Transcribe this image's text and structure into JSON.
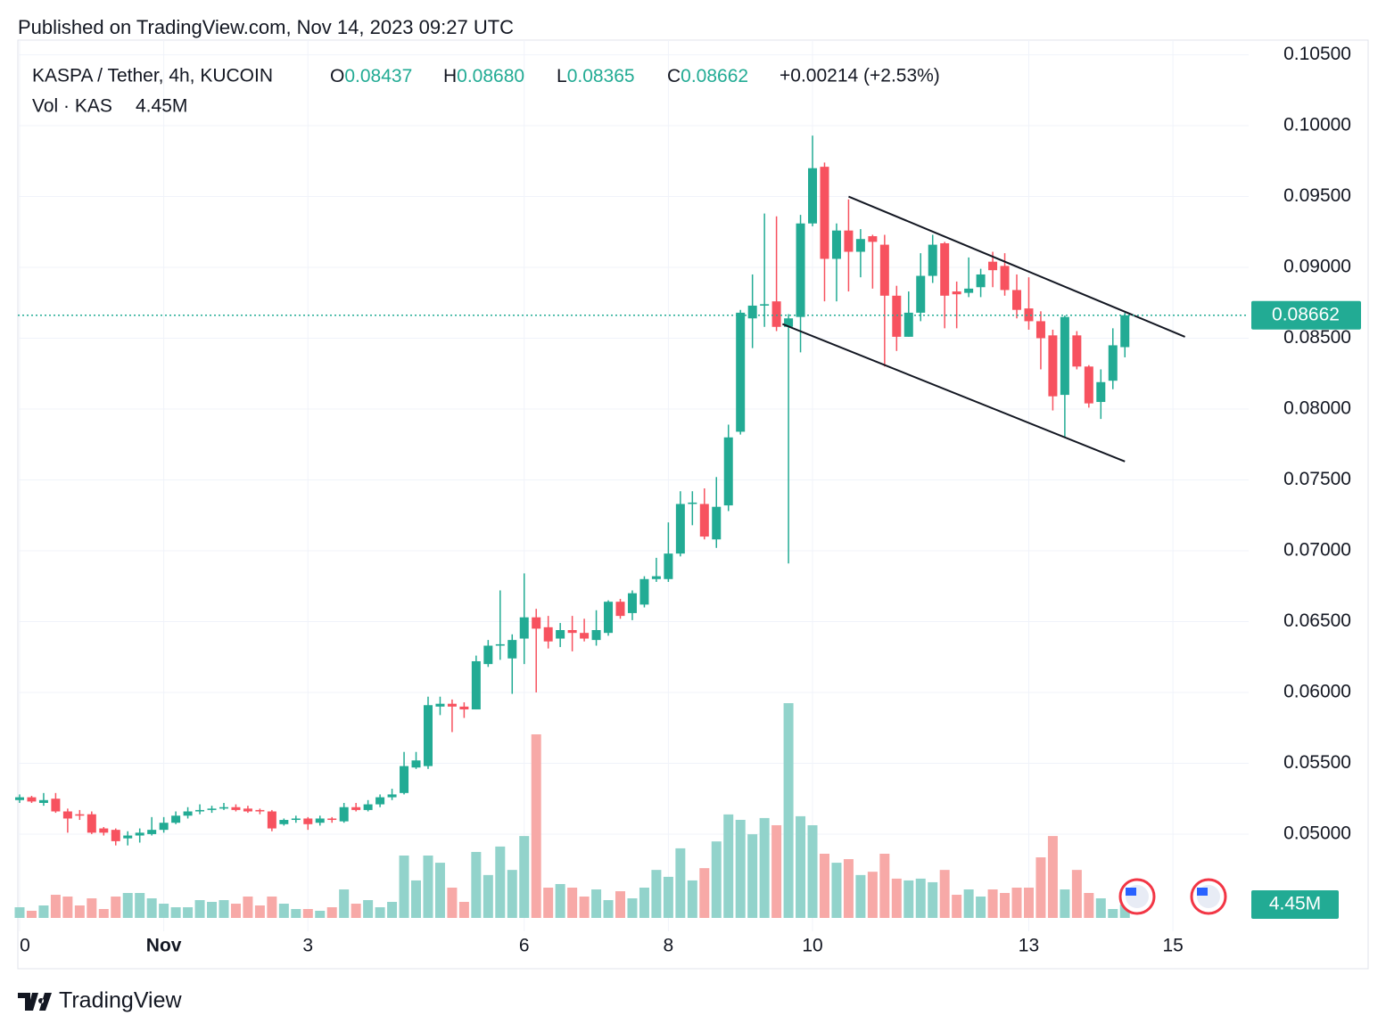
{
  "header": {
    "published": "Published on TradingView.com, Nov 14, 2023 09:27 UTC",
    "brand": "TradingView"
  },
  "chart_data": {
    "type": "candlestick",
    "symbol": "KASPA / Tether, 4h, KUCOIN",
    "ohlc_legend": [
      {
        "key": "O",
        "value": "0.08437"
      },
      {
        "key": "H",
        "value": "0.08680"
      },
      {
        "key": "L",
        "value": "0.08365"
      },
      {
        "key": "C",
        "value": "0.08662"
      }
    ],
    "change": "+0.00214 (+2.53%)",
    "volume_title": "Vol · KAS",
    "volume_legend": "4.45M",
    "up_color": "#22ab94",
    "down_color": "#f7525f",
    "volume_up_color": "#92d3cb",
    "volume_down_color": "#f7a9a7",
    "categories": [
      "0",
      null,
      null,
      null,
      null,
      null,
      null,
      null,
      null,
      null,
      null,
      null,
      "Nov",
      null,
      null,
      null,
      null,
      null,
      null,
      null,
      null,
      null,
      null,
      null,
      "3",
      null,
      null,
      null,
      null,
      null,
      null,
      null,
      null,
      null,
      null,
      null,
      null,
      null,
      null,
      null,
      null,
      null,
      "6",
      null,
      null,
      null,
      null,
      null,
      null,
      null,
      null,
      null,
      null,
      null,
      "8",
      null,
      null,
      null,
      null,
      null,
      null,
      null,
      null,
      null,
      null,
      null,
      "10",
      null,
      null,
      null,
      null,
      null,
      null,
      null,
      null,
      null,
      null,
      null,
      null,
      null,
      null,
      null,
      null,
      null,
      "13",
      null,
      null,
      null,
      null,
      null,
      null,
      null,
      null,
      null,
      null,
      null,
      "15"
    ],
    "bold_categories": [
      "Nov"
    ],
    "open": [
      0.0524,
      0.0526,
      0.0522,
      0.0525,
      0.0516,
      0.0514,
      0.0514,
      0.0504,
      0.0503,
      0.0497,
      0.0499,
      0.05,
      0.0503,
      0.0508,
      0.0513,
      0.0516,
      0.0517,
      0.0518,
      0.0519,
      0.0518,
      0.0517,
      0.0516,
      0.0507,
      0.051,
      0.0511,
      0.0508,
      0.0511,
      0.0509,
      0.0519,
      0.0517,
      0.0521,
      0.0526,
      0.0529,
      0.0547,
      0.0548,
      0.059,
      0.0592,
      0.059,
      0.0588,
      0.062,
      0.0633,
      0.0624,
      0.0638,
      0.0653,
      0.0646,
      0.0638,
      0.0644,
      0.0642,
      0.0637,
      0.0642,
      0.0664,
      0.0656,
      0.0662,
      0.068,
      0.068,
      0.0698,
      0.0733,
      0.0733,
      0.0708,
      0.0732,
      0.0784,
      0.0864,
      0.0873,
      0.0876,
      0.0858,
      0.0865,
      0.0931,
      0.0971,
      0.0906,
      0.0926,
      0.0911,
      0.0922,
      0.0916,
      0.088,
      0.0851,
      0.0868,
      0.0894,
      0.0917,
      0.0883,
      0.0882,
      0.0886,
      0.0904,
      0.0901,
      0.0884,
      0.0871,
      0.0862,
      0.0852,
      0.081,
      0.0852,
      0.083,
      0.0805,
      0.082,
      0.08437,
      null,
      null,
      null,
      null
    ],
    "high": [
      0.0528,
      0.0527,
      0.0529,
      0.0529,
      0.0518,
      0.0517,
      0.0516,
      0.0505,
      0.0504,
      0.0502,
      0.0504,
      0.0512,
      0.0512,
      0.0516,
      0.0519,
      0.0521,
      0.052,
      0.0522,
      0.0521,
      0.052,
      0.0518,
      0.0517,
      0.0511,
      0.0513,
      0.0512,
      0.0513,
      0.0512,
      0.0522,
      0.0522,
      0.0524,
      0.0528,
      0.0532,
      0.0558,
      0.0558,
      0.0597,
      0.0597,
      0.0595,
      0.0593,
      0.0626,
      0.0637,
      0.0672,
      0.0641,
      0.0684,
      0.0659,
      0.0654,
      0.0649,
      0.0654,
      0.0652,
      0.0658,
      0.0665,
      0.0666,
      0.0672,
      0.0682,
      0.0695,
      0.072,
      0.0742,
      0.0742,
      0.0744,
      0.0752,
      0.0789,
      0.087,
      0.0895,
      0.0938,
      0.0936,
      0.0867,
      0.0937,
      0.0993,
      0.0974,
      0.0931,
      0.0948,
      0.0927,
      0.0923,
      0.0923,
      0.0887,
      0.0883,
      0.091,
      0.0923,
      0.0918,
      0.089,
      0.0907,
      0.0899,
      0.0911,
      0.091,
      0.0895,
      0.0893,
      0.0869,
      0.0856,
      0.0866,
      0.0855,
      0.0831,
      0.0828,
      0.0857,
      0.0868,
      null,
      null,
      null,
      null
    ],
    "low": [
      0.0522,
      0.0522,
      0.052,
      0.0515,
      0.0501,
      0.051,
      0.05,
      0.0499,
      0.0492,
      0.0492,
      0.0494,
      0.0499,
      0.0501,
      0.0507,
      0.0511,
      0.0514,
      0.0515,
      0.0517,
      0.0516,
      0.0515,
      0.0514,
      0.0502,
      0.0506,
      0.0508,
      0.0503,
      0.0506,
      0.0508,
      0.0508,
      0.0516,
      0.0516,
      0.0519,
      0.0524,
      0.0528,
      0.0546,
      0.0546,
      0.0584,
      0.0572,
      0.0582,
      0.0588,
      0.0618,
      0.0623,
      0.0599,
      0.062,
      0.06,
      0.0631,
      0.0632,
      0.0629,
      0.0636,
      0.0633,
      0.064,
      0.0652,
      0.0651,
      0.066,
      0.0678,
      0.0678,
      0.0696,
      0.0718,
      0.0708,
      0.0702,
      0.0728,
      0.0782,
      0.0843,
      0.0858,
      0.0855,
      0.0691,
      0.084,
      0.0929,
      0.0876,
      0.0876,
      0.0883,
      0.0893,
      0.0885,
      0.083,
      0.0841,
      0.0851,
      0.0862,
      0.0889,
      0.0857,
      0.0857,
      0.0879,
      0.0879,
      0.0886,
      0.088,
      0.0864,
      0.0856,
      0.0828,
      0.0799,
      0.078,
      0.0828,
      0.0801,
      0.0793,
      0.0814,
      0.08365,
      null,
      null,
      null,
      null
    ],
    "close": [
      0.0526,
      0.0523,
      0.0524,
      0.0516,
      0.0511,
      0.0513,
      0.0501,
      0.0501,
      0.0495,
      0.0499,
      0.0501,
      0.0503,
      0.0508,
      0.0513,
      0.0516,
      0.0517,
      0.0518,
      0.0519,
      0.0517,
      0.0516,
      0.0516,
      0.0504,
      0.051,
      0.0511,
      0.0507,
      0.0511,
      0.051,
      0.0519,
      0.0517,
      0.0521,
      0.0526,
      0.0528,
      0.0548,
      0.0552,
      0.0591,
      0.0592,
      0.059,
      0.0588,
      0.0622,
      0.0633,
      0.0634,
      0.0637,
      0.0653,
      0.0645,
      0.0636,
      0.0644,
      0.0642,
      0.0638,
      0.0644,
      0.0664,
      0.0654,
      0.067,
      0.068,
      0.0682,
      0.0698,
      0.0733,
      0.0734,
      0.071,
      0.0731,
      0.078,
      0.0868,
      0.0873,
      0.0874,
      0.0858,
      0.0864,
      0.0931,
      0.097,
      0.0906,
      0.0926,
      0.0911,
      0.092,
      0.0918,
      0.088,
      0.0851,
      0.0868,
      0.0894,
      0.0916,
      0.088,
      0.0881,
      0.0885,
      0.0895,
      0.0898,
      0.0884,
      0.087,
      0.0862,
      0.085,
      0.0809,
      0.0865,
      0.083,
      0.0804,
      0.0819,
      0.0845,
      0.08662,
      null,
      null,
      null,
      null
    ],
    "volume": [
      3.56,
      2.38,
      4.16,
      7.72,
      7.13,
      4.16,
      6.53,
      2.97,
      7.13,
      8.32,
      8.32,
      6.53,
      4.75,
      3.56,
      3.56,
      5.94,
      5.35,
      5.94,
      4.75,
      7.13,
      4.16,
      7.13,
      4.75,
      2.97,
      2.97,
      2.38,
      3.56,
      9.5,
      4.75,
      5.94,
      3.56,
      5.35,
      20.8,
      12.5,
      20.8,
      18.4,
      10.1,
      5.35,
      22.0,
      14.3,
      23.8,
      16.0,
      27.3,
      61.2,
      10.1,
      11.3,
      10.1,
      7.13,
      9.5,
      5.94,
      8.9,
      6.53,
      10.1,
      16.0,
      13.7,
      23.2,
      12.5,
      16.6,
      25.5,
      34.5,
      32.7,
      27.9,
      33.3,
      30.9,
      71.6,
      33.9,
      30.9,
      21.4,
      18.4,
      19.6,
      14.3,
      15.4,
      21.4,
      13.1,
      12.5,
      13.1,
      11.9,
      16.0,
      7.72,
      9.5,
      7.13,
      9.5,
      8.32,
      10.1,
      10.1,
      20.2,
      27.3,
      9.5,
      16.0,
      8.32,
      6.53,
      2.97,
      4.45,
      null,
      null,
      null,
      null
    ],
    "volume_labels": [
      null,
      null,
      null,
      null,
      null,
      null,
      null,
      null,
      null,
      null,
      null,
      null,
      null,
      null,
      null,
      null,
      null,
      null,
      null,
      null,
      null,
      null,
      null,
      null,
      null,
      null,
      null,
      null,
      null,
      null,
      null,
      null,
      null,
      null,
      null,
      null,
      null,
      null,
      null,
      null,
      null,
      null,
      null,
      null,
      null,
      null,
      null,
      null,
      null,
      null,
      null,
      null,
      null,
      null,
      null,
      null,
      null,
      null,
      null,
      null,
      null,
      null,
      null,
      null,
      null,
      null,
      null,
      null,
      null,
      null,
      null,
      null,
      null,
      null,
      null,
      null,
      null,
      null,
      null,
      null,
      null,
      null,
      null,
      null,
      null,
      null,
      null,
      null,
      null,
      null,
      null,
      null,
      "4.45M",
      null,
      null,
      null,
      null
    ],
    "ylim": [
      0.04314,
      0.10604
    ],
    "yticks": [
      {
        "value": 0.05,
        "label": "0.05000"
      },
      {
        "value": 0.055,
        "label": "0.05500"
      },
      {
        "value": 0.06,
        "label": "0.06000"
      },
      {
        "value": 0.065,
        "label": "0.06500"
      },
      {
        "value": 0.07,
        "label": "0.07000"
      },
      {
        "value": 0.075,
        "label": "0.07500"
      },
      {
        "value": 0.08,
        "label": "0.08000"
      },
      {
        "value": 0.085,
        "label": "0.08500"
      },
      {
        "value": 0.09,
        "label": "0.09000"
      },
      {
        "value": 0.095,
        "label": "0.09500"
      },
      {
        "value": 0.1,
        "label": "0.10000"
      },
      {
        "value": 0.105,
        "label": "0.10500"
      }
    ],
    "price_line": {
      "value": 0.08662,
      "label": "0.08662"
    },
    "grid": true,
    "trend_lines": [
      {
        "x": [
          69,
          97
        ],
        "y": [
          0.095,
          0.0851
        ]
      },
      {
        "x": [
          63.5,
          92
        ],
        "y": [
          0.086,
          0.0763
        ]
      }
    ]
  }
}
